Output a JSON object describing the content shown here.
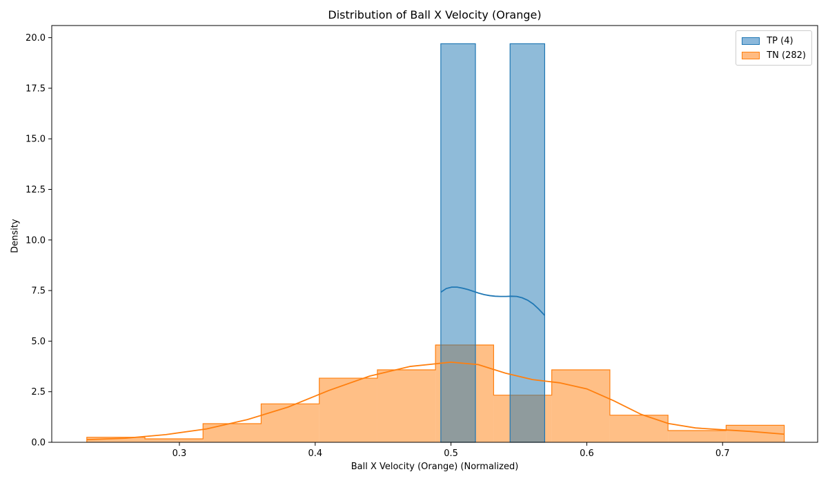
{
  "chart_data": {
    "type": "histogram",
    "title": "Distribution of Ball X Velocity (Orange)",
    "xlabel": "Ball X Velocity (Orange) (Normalized)",
    "ylabel": "Density",
    "xlim": [
      0.206,
      0.77
    ],
    "ylim": [
      0,
      20.6
    ],
    "x_ticks": [
      0.3,
      0.4,
      0.5,
      0.6,
      0.7
    ],
    "x_tick_labels": [
      "0.3",
      "0.4",
      "0.5",
      "0.6",
      "0.7"
    ],
    "y_ticks": [
      0.0,
      2.5,
      5.0,
      7.5,
      10.0,
      12.5,
      15.0,
      17.5,
      20.0
    ],
    "y_tick_labels": [
      "0.0",
      "2.5",
      "5.0",
      "7.5",
      "10.0",
      "12.5",
      "15.0",
      "17.5",
      "20.0"
    ],
    "grid": false,
    "legend_position": "top-right",
    "series": [
      {
        "name": "TP (4)",
        "color": "#1f77b4",
        "fill": "#8bb8db",
        "bin_edges": [
          0.4925,
          0.518,
          0.5435,
          0.569
        ],
        "densities": [
          19.7,
          0,
          19.7
        ],
        "kde": {
          "x": [
            0.4925,
            0.4965,
            0.5005,
            0.5045,
            0.5085,
            0.5125,
            0.5165,
            0.5205,
            0.5245,
            0.5285,
            0.5325,
            0.5365,
            0.5405,
            0.5445,
            0.5485,
            0.5525,
            0.5565,
            0.5605,
            0.5645,
            0.569
          ],
          "y": [
            7.42,
            7.6,
            7.67,
            7.67,
            7.62,
            7.55,
            7.46,
            7.37,
            7.3,
            7.25,
            7.22,
            7.21,
            7.21,
            7.22,
            7.21,
            7.14,
            7.02,
            6.84,
            6.59,
            6.27
          ]
        }
      },
      {
        "name": "TN (282)",
        "color": "#ff7f0e",
        "fill": "#ffbb82",
        "bin_edges": [
          0.2318,
          0.2746,
          0.3174,
          0.3602,
          0.403,
          0.4458,
          0.4886,
          0.5314,
          0.5742,
          0.617,
          0.6598,
          0.7026,
          0.7454
        ],
        "densities": [
          0.25,
          0.17,
          0.92,
          1.9,
          3.17,
          3.58,
          4.81,
          2.33,
          3.58,
          1.34,
          0.58,
          0.84
        ],
        "kde": {
          "x": [
            0.2318,
            0.26,
            0.29,
            0.32,
            0.35,
            0.38,
            0.41,
            0.44,
            0.47,
            0.5,
            0.52,
            0.54,
            0.56,
            0.58,
            0.6,
            0.62,
            0.64,
            0.66,
            0.68,
            0.7,
            0.72,
            0.7454
          ],
          "y": [
            0.13,
            0.2,
            0.38,
            0.66,
            1.12,
            1.74,
            2.56,
            3.27,
            3.75,
            3.96,
            3.84,
            3.42,
            3.1,
            2.94,
            2.64,
            2.05,
            1.38,
            0.93,
            0.71,
            0.62,
            0.54,
            0.4
          ]
        }
      }
    ]
  }
}
